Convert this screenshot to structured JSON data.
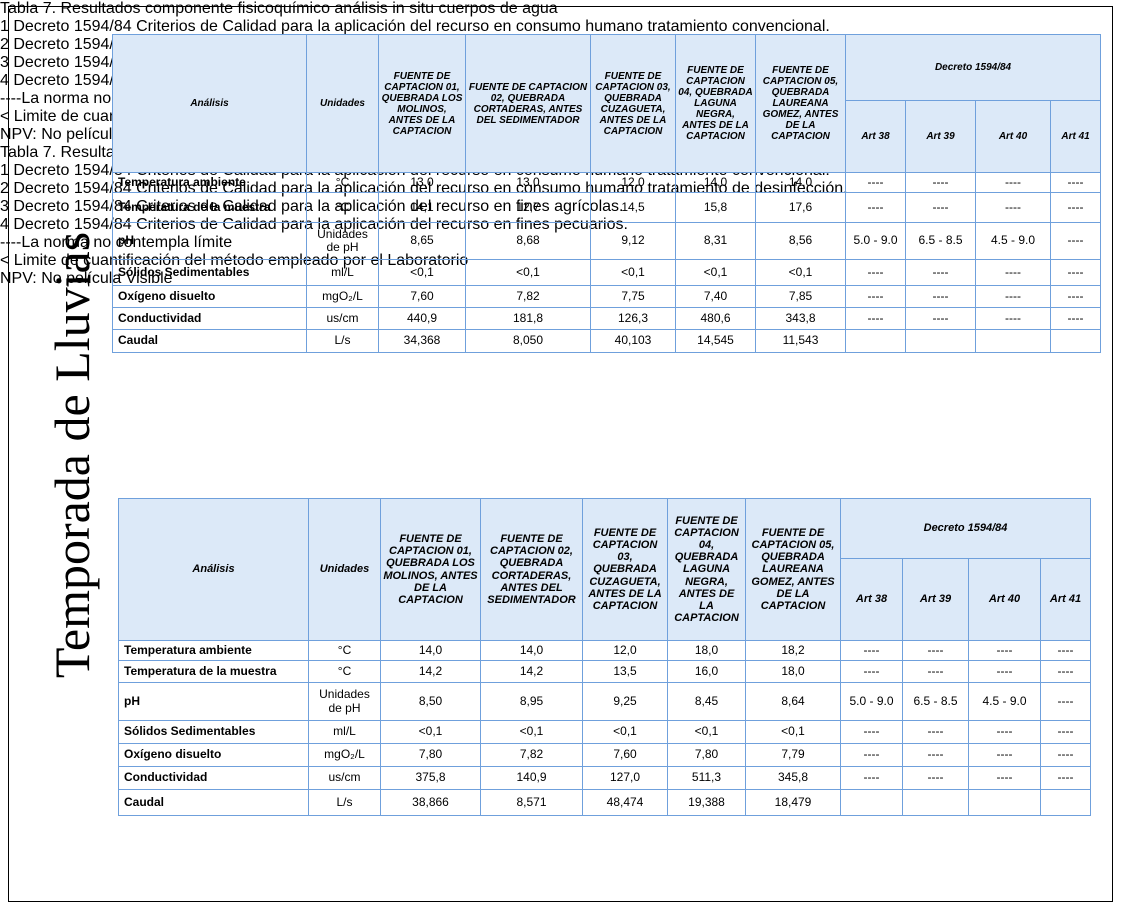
{
  "side_label": "Temporada de Lluvias",
  "tables": [
    {
      "title": "Tabla 7. Resultados componente fisicoquímico análisis in situ cuerpos de agua",
      "header": {
        "analisis": "Análisis",
        "unidades": "Unidades",
        "sources": [
          "FUENTE DE CAPTACION 01, QUEBRADA LOS MOLINOS, ANTES DE LA CAPTACION",
          "FUENTE DE CAPTACION 02, QUEBRADA CORTADERAS, ANTES DEL SEDIMENTADOR",
          "FUENTE DE CAPTACION 03, QUEBRADA CUZAGUETA, ANTES DE LA CAPTACION",
          "FUENTE DE CAPTACION 04, QUEBRADA LAGUNA NEGRA, ANTES DE LA CAPTACION",
          "FUENTE DE CAPTACION 05, QUEBRADA LAUREANA GOMEZ, ANTES DE LA CAPTACION"
        ],
        "decreto": "Decreto 1594/84",
        "articles": [
          "Art 38",
          "Art 39",
          "Art 40",
          "Art 41"
        ]
      },
      "rows": [
        [
          "Temperatura ambiente",
          "°C",
          "13,0",
          "13,0",
          "12,0",
          "14,0",
          "14,0",
          "----",
          "----",
          "----",
          "----"
        ],
        [
          "Temperatura de la muestra",
          "°C",
          "14,1",
          "12,7",
          "14,5",
          "15,8",
          "17,6",
          "----",
          "----",
          "----",
          "----"
        ],
        [
          "pH",
          "Unidades de pH",
          "8,65",
          "8,68",
          "9,12",
          "8,31",
          "8,56",
          "5.0 - 9.0",
          "6.5 - 8.5",
          "4.5 - 9.0",
          "----"
        ],
        [
          "Sólidos Sedimentables",
          "ml/L",
          "<0,1",
          "<0,1",
          "<0,1",
          "<0,1",
          "<0,1",
          "----",
          "----",
          "----",
          "----"
        ],
        [
          "Oxígeno disuelto",
          "mgO₂/L",
          "7,60",
          "7,82",
          "7,75",
          "7,40",
          "7,85",
          "----",
          "----",
          "----",
          "----"
        ],
        [
          "Conductividad",
          "us/cm",
          "440,9",
          "181,8",
          "126,3",
          "480,6",
          "343,8",
          "----",
          "----",
          "----",
          "----"
        ],
        [
          "Caudal",
          "L/s",
          "34,368",
          "8,050",
          "40,103",
          "14,545",
          "11,543"
        ]
      ],
      "notes": [
        "1 Decreto 1594/84 Criterios de Calidad para la aplicación del recurso en consumo humano tratamiento convencional.",
        "2 Decreto 1594/84 Criterios de Calidad para la aplicación del recurso en consumo humano tratamiento de desinfección.",
        "3 Decreto 1594/84 Criterios de Calidad para la aplicación del recurso en fines agrícolas.",
        "4 Decreto 1594/84 Criterios de Calidad para la aplicación del recurso en fines pecuarios.",
        "----La norma no contempla límite",
        "< Limite de cuantificación del método empleado por el Laboratorio",
        "NPV: No película Visible"
      ]
    },
    {
      "title": "Tabla 7. Resultados componente fisicoquímico análisis in situ cuerpos de agua",
      "header": {
        "analisis": "Análisis",
        "unidades": "Unidades",
        "sources": [
          "FUENTE DE CAPTACION 01, QUEBRADA LOS MOLINOS, ANTES DE LA CAPTACION",
          "FUENTE DE CAPTACION 02, QUEBRADA CORTADERAS, ANTES DEL SEDIMENTADOR",
          "FUENTE DE CAPTACION 03, QUEBRADA CUZAGUETA, ANTES DE LA CAPTACION",
          "FUENTE DE CAPTACION 04, QUEBRADA LAGUNA NEGRA, ANTES DE LA CAPTACION",
          "FUENTE DE CAPTACION 05, QUEBRADA LAUREANA GOMEZ, ANTES DE LA CAPTACION"
        ],
        "decreto": "Decreto 1594/84",
        "articles": [
          "Art 38",
          "Art 39",
          "Art 40",
          "Art 41"
        ]
      },
      "rows": [
        [
          "Temperatura ambiente",
          "°C",
          "14,0",
          "14,0",
          "12,0",
          "18,0",
          "18,2",
          "----",
          "----",
          "----",
          "----"
        ],
        [
          "Temperatura de la muestra",
          "°C",
          "14,2",
          "14,2",
          "13,5",
          "16,0",
          "18,0",
          "----",
          "----",
          "----",
          "----"
        ],
        [
          "pH",
          "Unidades de pH",
          "8,50",
          "8,95",
          "9,25",
          "8,45",
          "8,64",
          "5.0 - 9.0",
          "6.5 - 8.5",
          "4.5 - 9.0",
          "----"
        ],
        [
          "Sólidos Sedimentables",
          "ml/L",
          "<0,1",
          "<0,1",
          "<0,1",
          "<0,1",
          "<0,1",
          "----",
          "----",
          "----",
          "----"
        ],
        [
          "Oxígeno disuelto",
          "mgO₂/L",
          "7,80",
          "7,82",
          "7,60",
          "7,80",
          "7,79",
          "----",
          "----",
          "----",
          "----"
        ],
        [
          "Conductividad",
          "us/cm",
          "375,8",
          "140,9",
          "127,0",
          "511,3",
          "345,8",
          "----",
          "----",
          "----",
          "----"
        ],
        [
          "Caudal",
          "L/s",
          "38,866",
          "8,571",
          "48,474",
          "19,388",
          "18,479"
        ]
      ],
      "notes": [
        "1 Decreto 1594/84 Criterios de Calidad para la aplicación del recurso en consumo humano tratamiento convencional.",
        "2 Decreto 1594/84 Criterios de Calidad para la aplicación del recurso en consumo humano tratamiento de desinfección.",
        "3 Decreto 1594/84 Criterios de Calidad para la aplicación del recurso en fines agrícolas.",
        "4 Decreto 1594/84 Criterios de Calidad para la aplicación del recurso en fines pecuarios.",
        "----La norma no contempla límite",
        "< Limite de cuantificación del método empleado por el Laboratorio",
        "NPV: No película Visible"
      ]
    }
  ]
}
